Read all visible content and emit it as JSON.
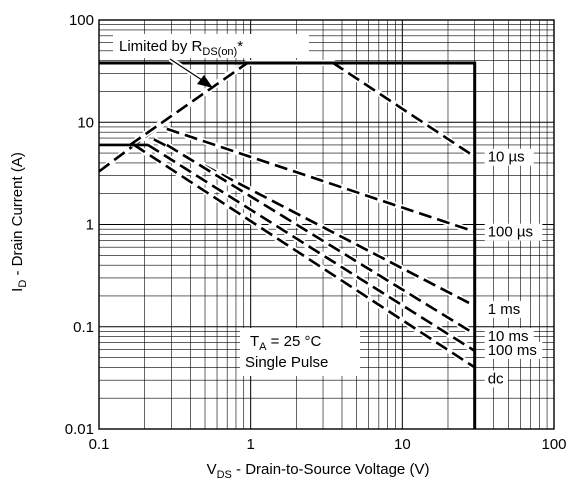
{
  "chart_data": {
    "type": "line",
    "title": "",
    "xlabel": {
      "main": "V",
      "sub": "DS",
      "rest": " - Drain-to-Source Voltage (V)"
    },
    "ylabel": {
      "main": "I",
      "sub": "D",
      "rest": " - Drain Current (A)"
    },
    "x_scale": "log",
    "y_scale": "log",
    "xlim": [
      0.1,
      100
    ],
    "ylim": [
      0.01,
      100
    ],
    "grid": true,
    "x_ticks": [
      {
        "value": 0.1,
        "label": "0.1"
      },
      {
        "value": 1,
        "label": "1"
      },
      {
        "value": 10,
        "label": "10"
      },
      {
        "value": 100,
        "label": "100"
      }
    ],
    "y_ticks": [
      {
        "value": 100,
        "label": "100"
      },
      {
        "value": 10,
        "label": "10"
      },
      {
        "value": 1,
        "label": "1"
      },
      {
        "value": 0.1,
        "label": "0.1"
      },
      {
        "value": 0.01,
        "label": "0.01"
      }
    ],
    "limit_boundary": {
      "name": "",
      "points": [
        [
          0.1,
          38
        ],
        [
          30,
          38
        ],
        [
          30,
          0.01
        ]
      ]
    },
    "rds_on_line": {
      "name": "",
      "points": [
        [
          0.1,
          3.3
        ],
        [
          0.9,
          38
        ]
      ]
    },
    "series": [
      {
        "name": "10 µs",
        "points": [
          [
            0.16,
            6.0
          ],
          [
            0.95,
            38
          ],
          [
            3.5,
            38
          ],
          [
            30,
            4.6
          ]
        ]
      },
      {
        "name": "100 µs",
        "points": [
          [
            0.28,
            8.6
          ],
          [
            30,
            0.85
          ]
        ]
      },
      {
        "name": "1 ms",
        "points": [
          [
            0.23,
            6.8
          ],
          [
            30,
            0.16
          ]
        ]
      },
      {
        "name": "10 ms",
        "points": [
          [
            0.28,
            6.0
          ],
          [
            30,
            0.085
          ]
        ]
      },
      {
        "name": "100 ms",
        "points": [
          [
            0.21,
            6.0
          ],
          [
            30,
            0.058
          ]
        ]
      },
      {
        "name": "dc",
        "points": [
          [
            0.17,
            6.0
          ],
          [
            30,
            0.04
          ]
        ]
      }
    ],
    "dc_plateau": {
      "points": [
        [
          0.1,
          6.0
        ],
        [
          0.21,
          6.0
        ]
      ]
    },
    "annotations": {
      "limited_by": {
        "text": "Limited by R",
        "sub": "DS(on)",
        "post": "*"
      },
      "ta": {
        "main": "T",
        "sub": "A",
        "rest": " = 25 °C"
      },
      "pulse": "Single Pulse"
    }
  }
}
